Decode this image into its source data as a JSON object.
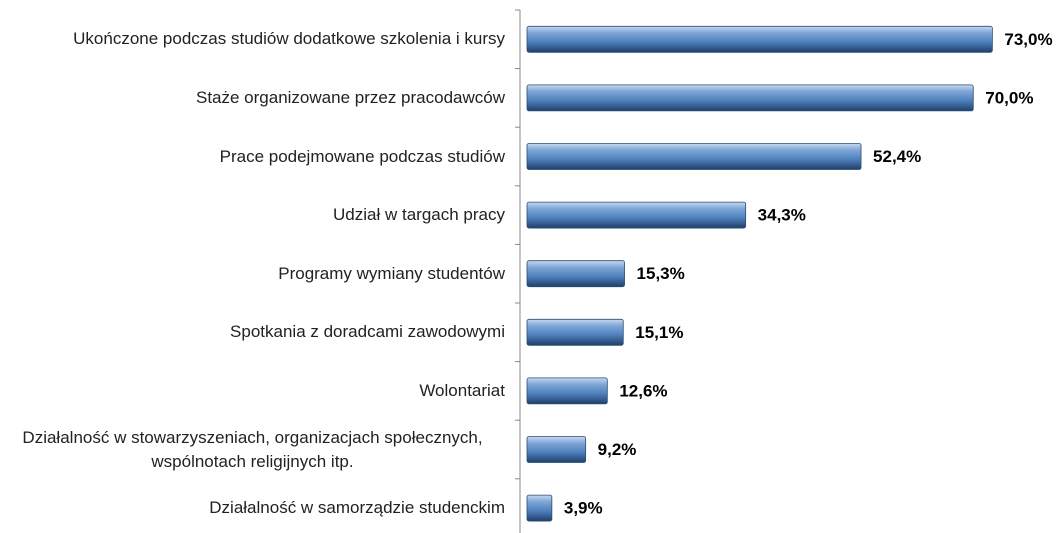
{
  "chart_data": {
    "type": "barh",
    "categories": [
      "Ukończone podczas studiów dodatkowe szkolenia i kursy",
      "Staże organizowane przez pracodawców",
      "Prace podejmowane podczas studiów",
      "Udział w targach pracy",
      "Programy wymiany studentów",
      "Spotkania z doradcami zawodowymi",
      "Wolontariat",
      "Działalność w stowarzyszeniach, organizacjach społecznych, wspólnotach religijnych itp.",
      "Działalność w samorządzie studenckim"
    ],
    "values": [
      73.0,
      70.0,
      52.4,
      34.3,
      15.3,
      15.1,
      12.6,
      9.2,
      3.9
    ],
    "value_labels": [
      "73,0%",
      "70,0%",
      "52,4%",
      "34,3%",
      "15,3%",
      "15,1%",
      "12,6%",
      "9,2%",
      "3,9%"
    ],
    "color": "#4f81bd",
    "xlim": [
      0,
      80
    ]
  }
}
